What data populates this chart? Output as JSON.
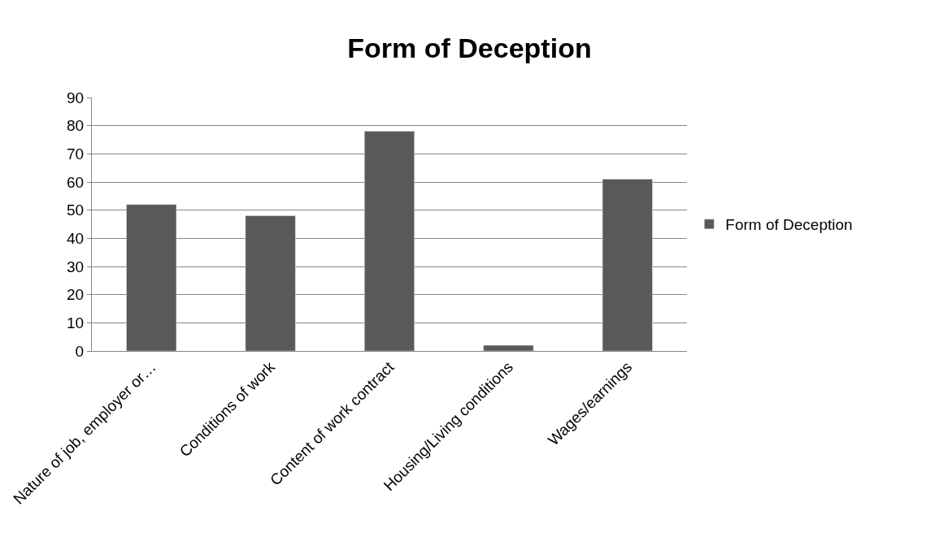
{
  "chart_data": {
    "type": "bar",
    "title": "Form of Deception",
    "categories": [
      "Nature of job, employer or…",
      "Conditions of work",
      "Content of work contract",
      "Housing/Living conditions",
      "Wages/earnings"
    ],
    "series": [
      {
        "name": "Form of Deception",
        "color": "#595959",
        "values": [
          52,
          48,
          78,
          2,
          61
        ]
      }
    ],
    "ylim": [
      0,
      90
    ],
    "yticks": [
      0,
      10,
      20,
      30,
      40,
      50,
      60,
      70,
      80,
      90
    ],
    "grid": "y",
    "legend": "right"
  }
}
